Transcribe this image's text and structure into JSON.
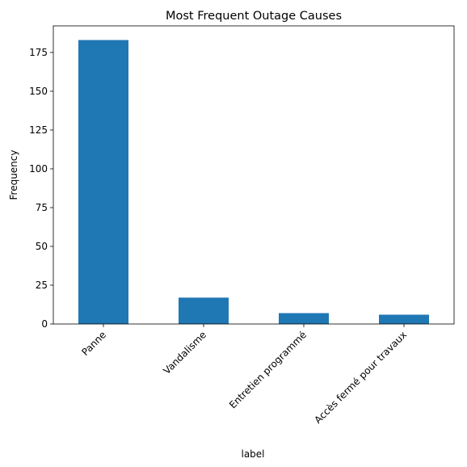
{
  "chart_data": {
    "type": "bar",
    "title": "Most Frequent Outage Causes",
    "xlabel": "label",
    "ylabel": "Frequency",
    "categories": [
      "Panne",
      "Vandalisme",
      "Entretien programmé",
      "Accès fermé pour travaux"
    ],
    "values": [
      183,
      17,
      7,
      6
    ],
    "ylim": [
      0,
      192.15
    ],
    "yticks": [
      0,
      25,
      50,
      75,
      100,
      125,
      150,
      175
    ],
    "bar_color": "#1f77b4",
    "grid": false,
    "legend": "none"
  }
}
